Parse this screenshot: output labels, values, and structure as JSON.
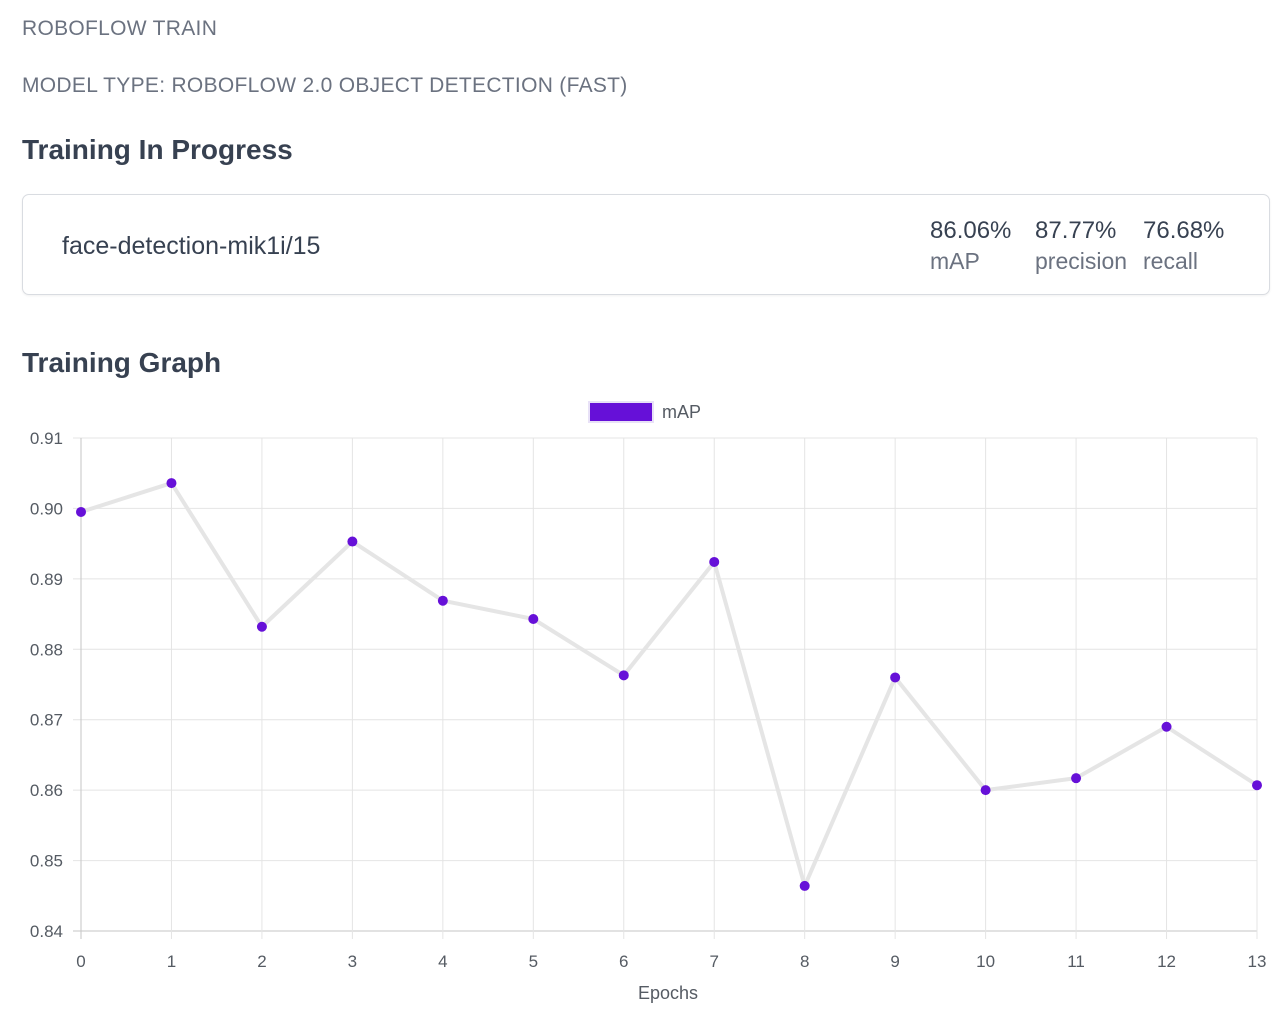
{
  "header": {
    "app_name": "ROBOFLOW TRAIN",
    "model_type": "MODEL TYPE: ROBOFLOW 2.0 OBJECT DETECTION (FAST)"
  },
  "training": {
    "section_title": "Training In Progress",
    "model_name": "face-detection-mik1i/15",
    "metrics": [
      {
        "value": "86.06%",
        "label": "mAP"
      },
      {
        "value": "87.77%",
        "label": "precision"
      },
      {
        "value": "76.68%",
        "label": "recall"
      }
    ]
  },
  "graph": {
    "section_title": "Training Graph"
  },
  "chart_data": {
    "type": "line",
    "xlabel": "Epochs",
    "ylabel": "",
    "x": [
      0,
      1,
      2,
      3,
      4,
      5,
      6,
      7,
      8,
      9,
      10,
      11,
      12,
      13
    ],
    "series": [
      {
        "name": "mAP",
        "values": [
          0.8995,
          0.9036,
          0.8832,
          0.8953,
          0.8869,
          0.8843,
          0.8763,
          0.8924,
          0.8464,
          0.876,
          0.86,
          0.8617,
          0.869,
          0.8607
        ],
        "point_color": "#6610d8",
        "line_color": "#e5e5e5"
      }
    ],
    "yticks": [
      "0.84",
      "0.85",
      "0.86",
      "0.87",
      "0.88",
      "0.89",
      "0.90",
      "0.91"
    ],
    "ylim": [
      0.84,
      0.91
    ],
    "xlim": [
      0,
      13
    ],
    "grid": true,
    "legend_position": "top-center"
  }
}
